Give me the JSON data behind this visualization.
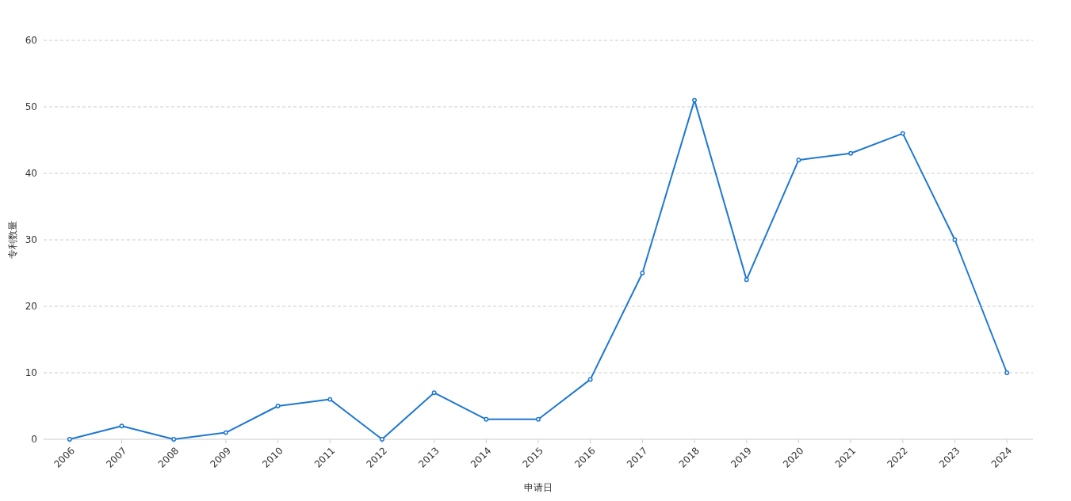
{
  "chart_data": {
    "type": "line",
    "xlabel": "申请日",
    "ylabel": "专利数量",
    "categories": [
      "2006",
      "2007",
      "2008",
      "2009",
      "2010",
      "2011",
      "2012",
      "2013",
      "2014",
      "2015",
      "2016",
      "2017",
      "2018",
      "2019",
      "2020",
      "2021",
      "2022",
      "2023",
      "2024"
    ],
    "series": [
      {
        "color": "#1f78d1",
        "values": [
          0,
          2,
          0,
          1,
          5,
          6,
          0,
          7,
          3,
          3,
          9,
          25,
          51,
          24,
          42,
          43,
          46,
          30,
          10
        ]
      }
    ],
    "ylim": [
      0,
      60
    ],
    "yticks": [
      0,
      10,
      20,
      30,
      40,
      50,
      60
    ],
    "grid": "y",
    "marker": "circle",
    "line_style": "solid"
  }
}
